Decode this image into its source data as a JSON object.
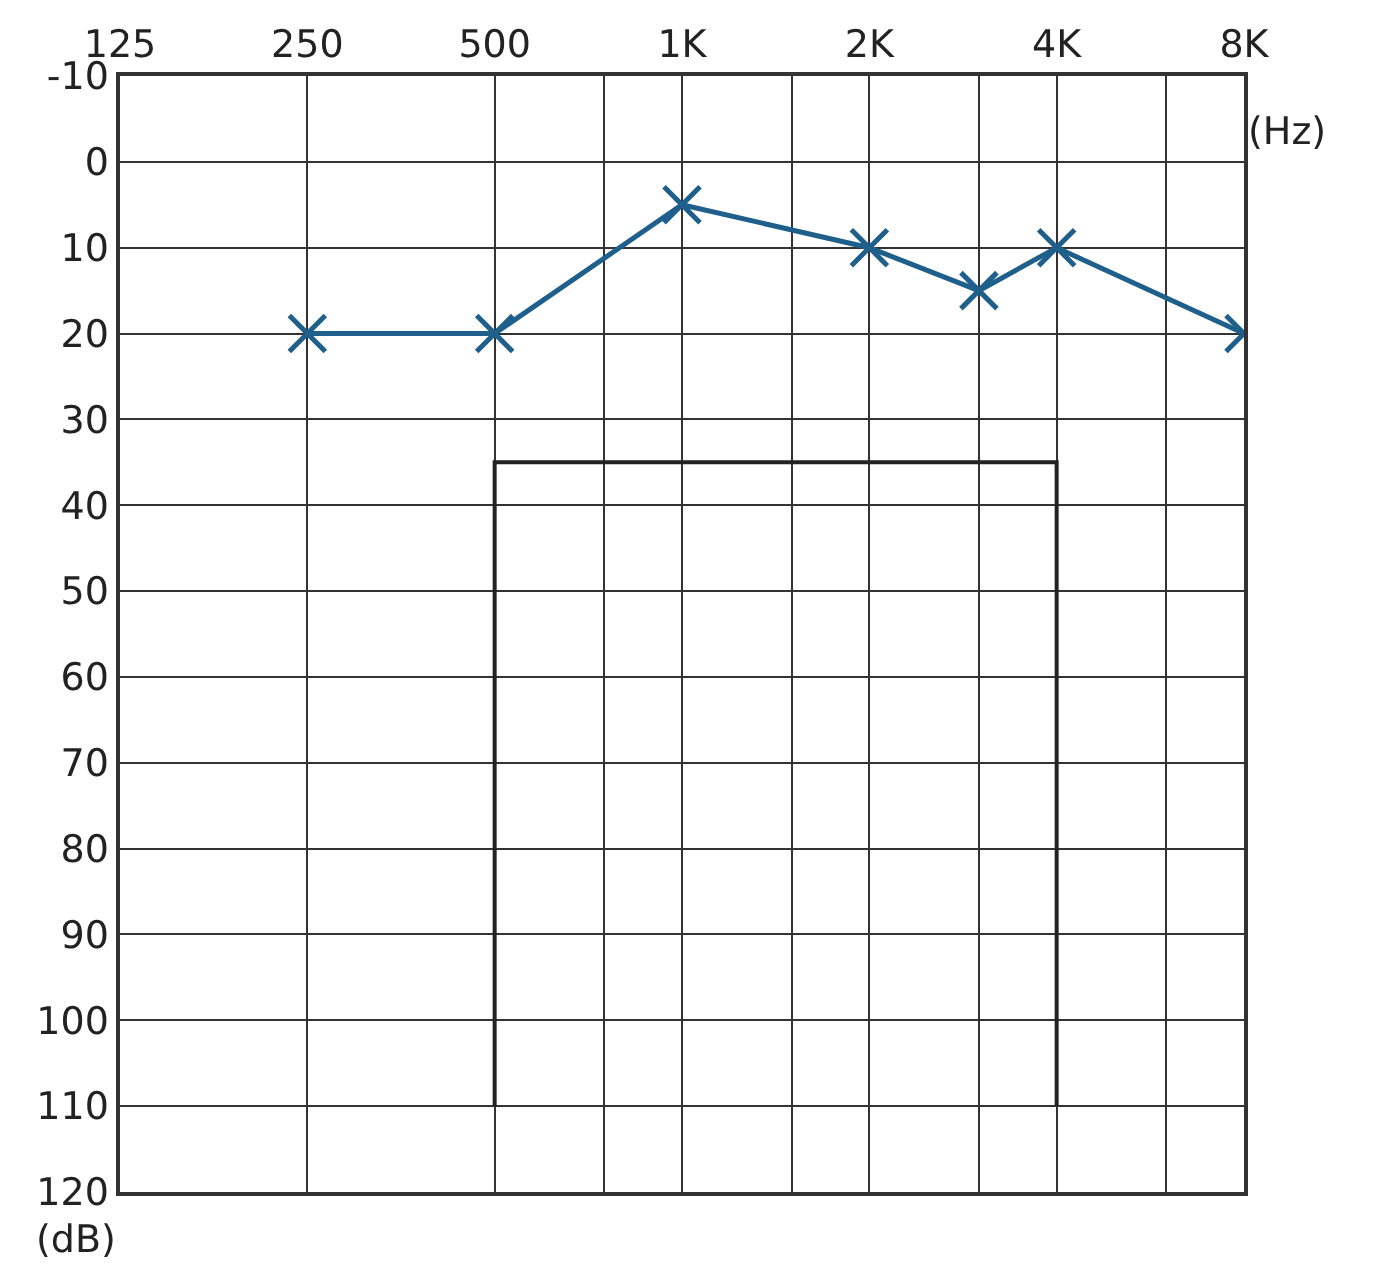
{
  "chart_data": {
    "type": "line",
    "xlabel": "(Hz)",
    "ylabel": "(dB)",
    "log": "x",
    "xlim": [
      125,
      8000
    ],
    "xticks": [
      125,
      250,
      500,
      {
        "value": 750,
        "label": null
      },
      {
        "value": 1000,
        "label": "1K"
      },
      {
        "value": 1500,
        "label": null
      },
      {
        "value": 2000,
        "label": "2K"
      },
      {
        "value": 3000,
        "label": null
      },
      {
        "value": 4000,
        "label": "4K"
      },
      {
        "value": 6000,
        "label": null
      },
      {
        "value": 8000,
        "label": "8K"
      }
    ],
    "ylim": [
      120,
      -10
    ],
    "yticks": [
      -10,
      0,
      10,
      20,
      30,
      40,
      50,
      60,
      70,
      80,
      90,
      100,
      110,
      120
    ],
    "grid": true,
    "series": [
      {
        "color": "#1f5f8b",
        "marker": "cross",
        "line_style": "solid",
        "x": [
          250,
          500,
          1000,
          2000,
          3000,
          4000,
          8000
        ],
        "values": [
          20,
          20,
          5,
          10,
          15,
          10,
          20
        ]
      },
      {
        "color": "#222222",
        "marker": "none",
        "line_style": "solid",
        "x": [
          500,
          500,
          4000,
          4000
        ],
        "values": [
          110,
          35,
          35,
          110
        ]
      }
    ]
  }
}
